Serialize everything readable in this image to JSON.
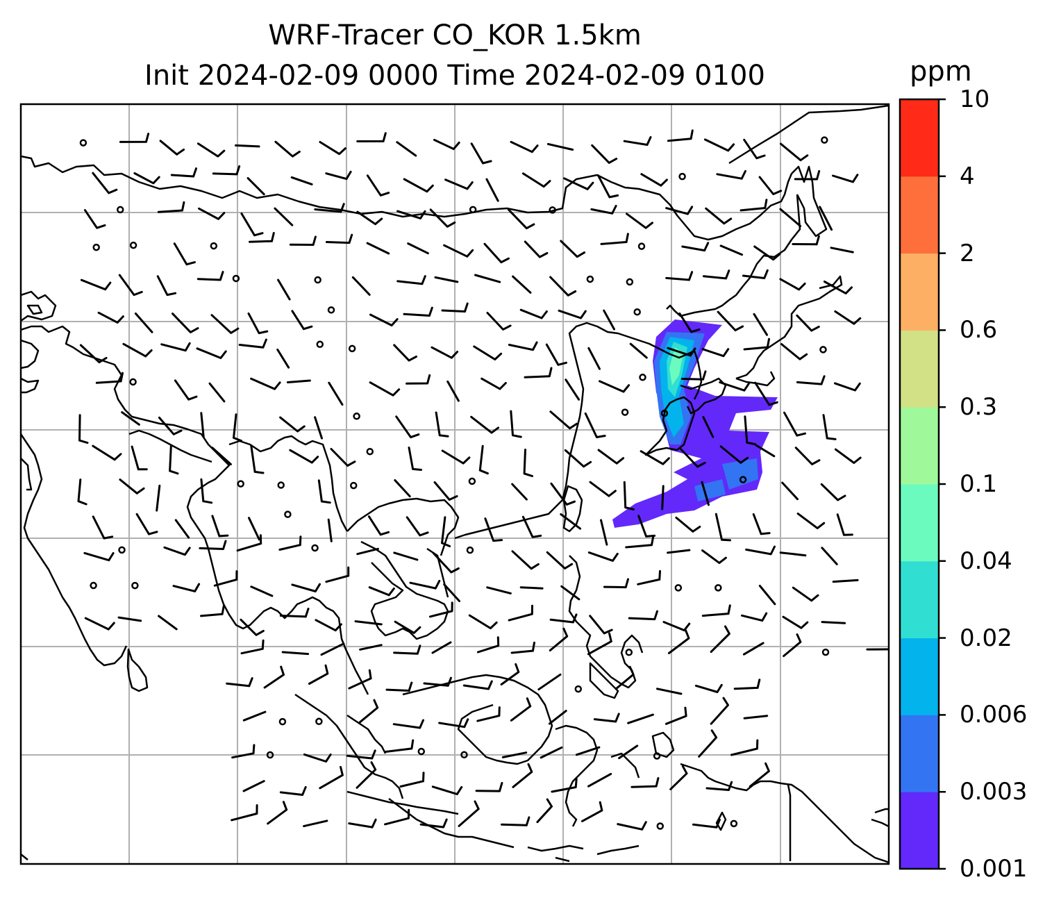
{
  "title_line1": "WRF-Tracer CO_KOR 1.5km",
  "title_line2": "Init 2024-02-09 0000 Time 2024-02-09 0100",
  "colorbar": {
    "title": "ppm",
    "levels": [
      "0.001",
      "0.003",
      "0.006",
      "0.02",
      "0.04",
      "0.1",
      "0.3",
      "0.6",
      "2",
      "4",
      "10"
    ],
    "colors": [
      "#6229fa",
      "#3374f3",
      "#02b3ec",
      "#30dfd2",
      "#6bfbbf",
      "#9ff99b",
      "#d2e186",
      "#fdb063",
      "#fe6f3b",
      "#ff2a17"
    ]
  },
  "map_colors": {
    "coastline": "#000000",
    "gridline": "#b0b0b0",
    "barb": "#000000"
  }
}
